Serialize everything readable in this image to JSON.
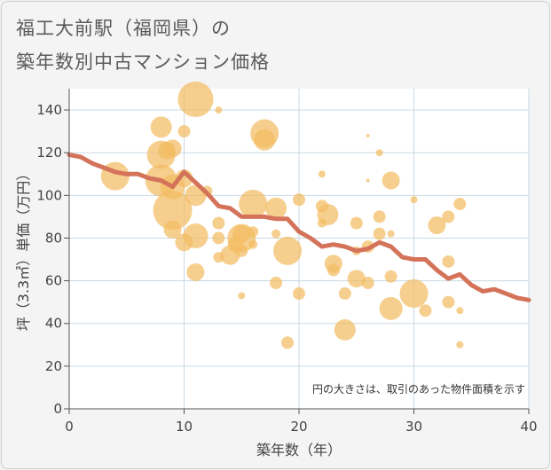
{
  "title_line1": "福工大前駅（福岡県）の",
  "title_line2": "築年数別中古マンション価格",
  "chart_data": {
    "type": "scatter",
    "xlabel": "築年数（年）",
    "ylabel": "坪（3.3㎡）単価（万円）",
    "xlim": [
      0,
      40
    ],
    "ylim": [
      0,
      150
    ],
    "xticks": [
      0,
      10,
      20,
      30,
      40
    ],
    "yticks": [
      0,
      20,
      40,
      60,
      80,
      100,
      120,
      140
    ],
    "note": "円の大きさは、取引のあった物件面積を示す",
    "colors": {
      "bubble": "#f2bd63",
      "line": "#d4735a",
      "grid": "#c9d9e4"
    },
    "bubbles": [
      {
        "x": 4,
        "y": 109,
        "s": 16
      },
      {
        "x": 8,
        "y": 132,
        "s": 12
      },
      {
        "x": 8,
        "y": 119,
        "s": 16
      },
      {
        "x": 8,
        "y": 107,
        "s": 18
      },
      {
        "x": 8.5,
        "y": 121,
        "s": 10
      },
      {
        "x": 9,
        "y": 122,
        "s": 10
      },
      {
        "x": 9,
        "y": 104,
        "s": 14
      },
      {
        "x": 9,
        "y": 93,
        "s": 22
      },
      {
        "x": 9,
        "y": 84,
        "s": 10
      },
      {
        "x": 10,
        "y": 130,
        "s": 7
      },
      {
        "x": 10,
        "y": 108,
        "s": 10
      },
      {
        "x": 10,
        "y": 78,
        "s": 10
      },
      {
        "x": 11,
        "y": 145,
        "s": 20
      },
      {
        "x": 11,
        "y": 100,
        "s": 12
      },
      {
        "x": 11,
        "y": 81,
        "s": 14
      },
      {
        "x": 11,
        "y": 64,
        "s": 10
      },
      {
        "x": 12,
        "y": 102,
        "s": 6
      },
      {
        "x": 13,
        "y": 140,
        "s": 4
      },
      {
        "x": 13,
        "y": 87,
        "s": 7
      },
      {
        "x": 13,
        "y": 80,
        "s": 7
      },
      {
        "x": 13,
        "y": 71,
        "s": 6
      },
      {
        "x": 14,
        "y": 72,
        "s": 11
      },
      {
        "x": 14.5,
        "y": 77,
        "s": 9
      },
      {
        "x": 15,
        "y": 82,
        "s": 10
      },
      {
        "x": 15,
        "y": 80,
        "s": 16
      },
      {
        "x": 15,
        "y": 74,
        "s": 7
      },
      {
        "x": 15,
        "y": 53,
        "s": 4
      },
      {
        "x": 16,
        "y": 96,
        "s": 16
      },
      {
        "x": 16,
        "y": 83,
        "s": 6
      },
      {
        "x": 16,
        "y": 77,
        "s": 5
      },
      {
        "x": 17,
        "y": 129,
        "s": 16
      },
      {
        "x": 17,
        "y": 126,
        "s": 12
      },
      {
        "x": 18,
        "y": 94,
        "s": 12
      },
      {
        "x": 18,
        "y": 82,
        "s": 5
      },
      {
        "x": 18,
        "y": 59,
        "s": 7
      },
      {
        "x": 19,
        "y": 74,
        "s": 16
      },
      {
        "x": 19,
        "y": 31,
        "s": 7
      },
      {
        "x": 20,
        "y": 98,
        "s": 7
      },
      {
        "x": 20,
        "y": 54,
        "s": 7
      },
      {
        "x": 22,
        "y": 110,
        "s": 4
      },
      {
        "x": 22,
        "y": 95,
        "s": 7
      },
      {
        "x": 22,
        "y": 87,
        "s": 5
      },
      {
        "x": 22.5,
        "y": 91,
        "s": 12
      },
      {
        "x": 23,
        "y": 68,
        "s": 10
      },
      {
        "x": 23,
        "y": 65,
        "s": 7
      },
      {
        "x": 24,
        "y": 54,
        "s": 7
      },
      {
        "x": 24,
        "y": 37,
        "s": 12
      },
      {
        "x": 25,
        "y": 87,
        "s": 7
      },
      {
        "x": 25,
        "y": 74,
        "s": 5
      },
      {
        "x": 25,
        "y": 61,
        "s": 10
      },
      {
        "x": 26,
        "y": 76,
        "s": 7
      },
      {
        "x": 26,
        "y": 59,
        "s": 7
      },
      {
        "x": 26,
        "y": 128,
        "s": 2
      },
      {
        "x": 26,
        "y": 107,
        "s": 2
      },
      {
        "x": 27,
        "y": 120,
        "s": 4
      },
      {
        "x": 27,
        "y": 90,
        "s": 7
      },
      {
        "x": 27,
        "y": 82,
        "s": 7
      },
      {
        "x": 28,
        "y": 107,
        "s": 10
      },
      {
        "x": 28,
        "y": 82,
        "s": 4
      },
      {
        "x": 28,
        "y": 62,
        "s": 7
      },
      {
        "x": 28,
        "y": 47,
        "s": 13
      },
      {
        "x": 30,
        "y": 98,
        "s": 4
      },
      {
        "x": 30,
        "y": 54,
        "s": 16
      },
      {
        "x": 31,
        "y": 46,
        "s": 7
      },
      {
        "x": 32,
        "y": 86,
        "s": 10
      },
      {
        "x": 33,
        "y": 90,
        "s": 7
      },
      {
        "x": 33,
        "y": 69,
        "s": 7
      },
      {
        "x": 33,
        "y": 50,
        "s": 7
      },
      {
        "x": 34,
        "y": 96,
        "s": 7
      },
      {
        "x": 34,
        "y": 46,
        "s": 4
      },
      {
        "x": 34,
        "y": 30,
        "s": 4
      }
    ],
    "line": [
      {
        "x": 0,
        "y": 119
      },
      {
        "x": 1,
        "y": 118
      },
      {
        "x": 2,
        "y": 115
      },
      {
        "x": 3,
        "y": 113
      },
      {
        "x": 4,
        "y": 111
      },
      {
        "x": 5,
        "y": 110
      },
      {
        "x": 6,
        "y": 110
      },
      {
        "x": 7,
        "y": 108
      },
      {
        "x": 8,
        "y": 107
      },
      {
        "x": 9,
        "y": 104
      },
      {
        "x": 10,
        "y": 111
      },
      {
        "x": 11,
        "y": 106
      },
      {
        "x": 12,
        "y": 101
      },
      {
        "x": 13,
        "y": 95
      },
      {
        "x": 14,
        "y": 94
      },
      {
        "x": 15,
        "y": 90
      },
      {
        "x": 16,
        "y": 90
      },
      {
        "x": 17,
        "y": 90
      },
      {
        "x": 18,
        "y": 89
      },
      {
        "x": 19,
        "y": 89
      },
      {
        "x": 20,
        "y": 83
      },
      {
        "x": 21,
        "y": 80
      },
      {
        "x": 22,
        "y": 76
      },
      {
        "x": 23,
        "y": 77
      },
      {
        "x": 24,
        "y": 76
      },
      {
        "x": 25,
        "y": 74
      },
      {
        "x": 26,
        "y": 75
      },
      {
        "x": 27,
        "y": 78
      },
      {
        "x": 28,
        "y": 76
      },
      {
        "x": 29,
        "y": 71
      },
      {
        "x": 30,
        "y": 70
      },
      {
        "x": 31,
        "y": 70
      },
      {
        "x": 32,
        "y": 65
      },
      {
        "x": 33,
        "y": 61
      },
      {
        "x": 34,
        "y": 63
      },
      {
        "x": 35,
        "y": 58
      },
      {
        "x": 36,
        "y": 55
      },
      {
        "x": 37,
        "y": 56
      },
      {
        "x": 38,
        "y": 54
      },
      {
        "x": 39,
        "y": 52
      },
      {
        "x": 40,
        "y": 51
      }
    ]
  }
}
